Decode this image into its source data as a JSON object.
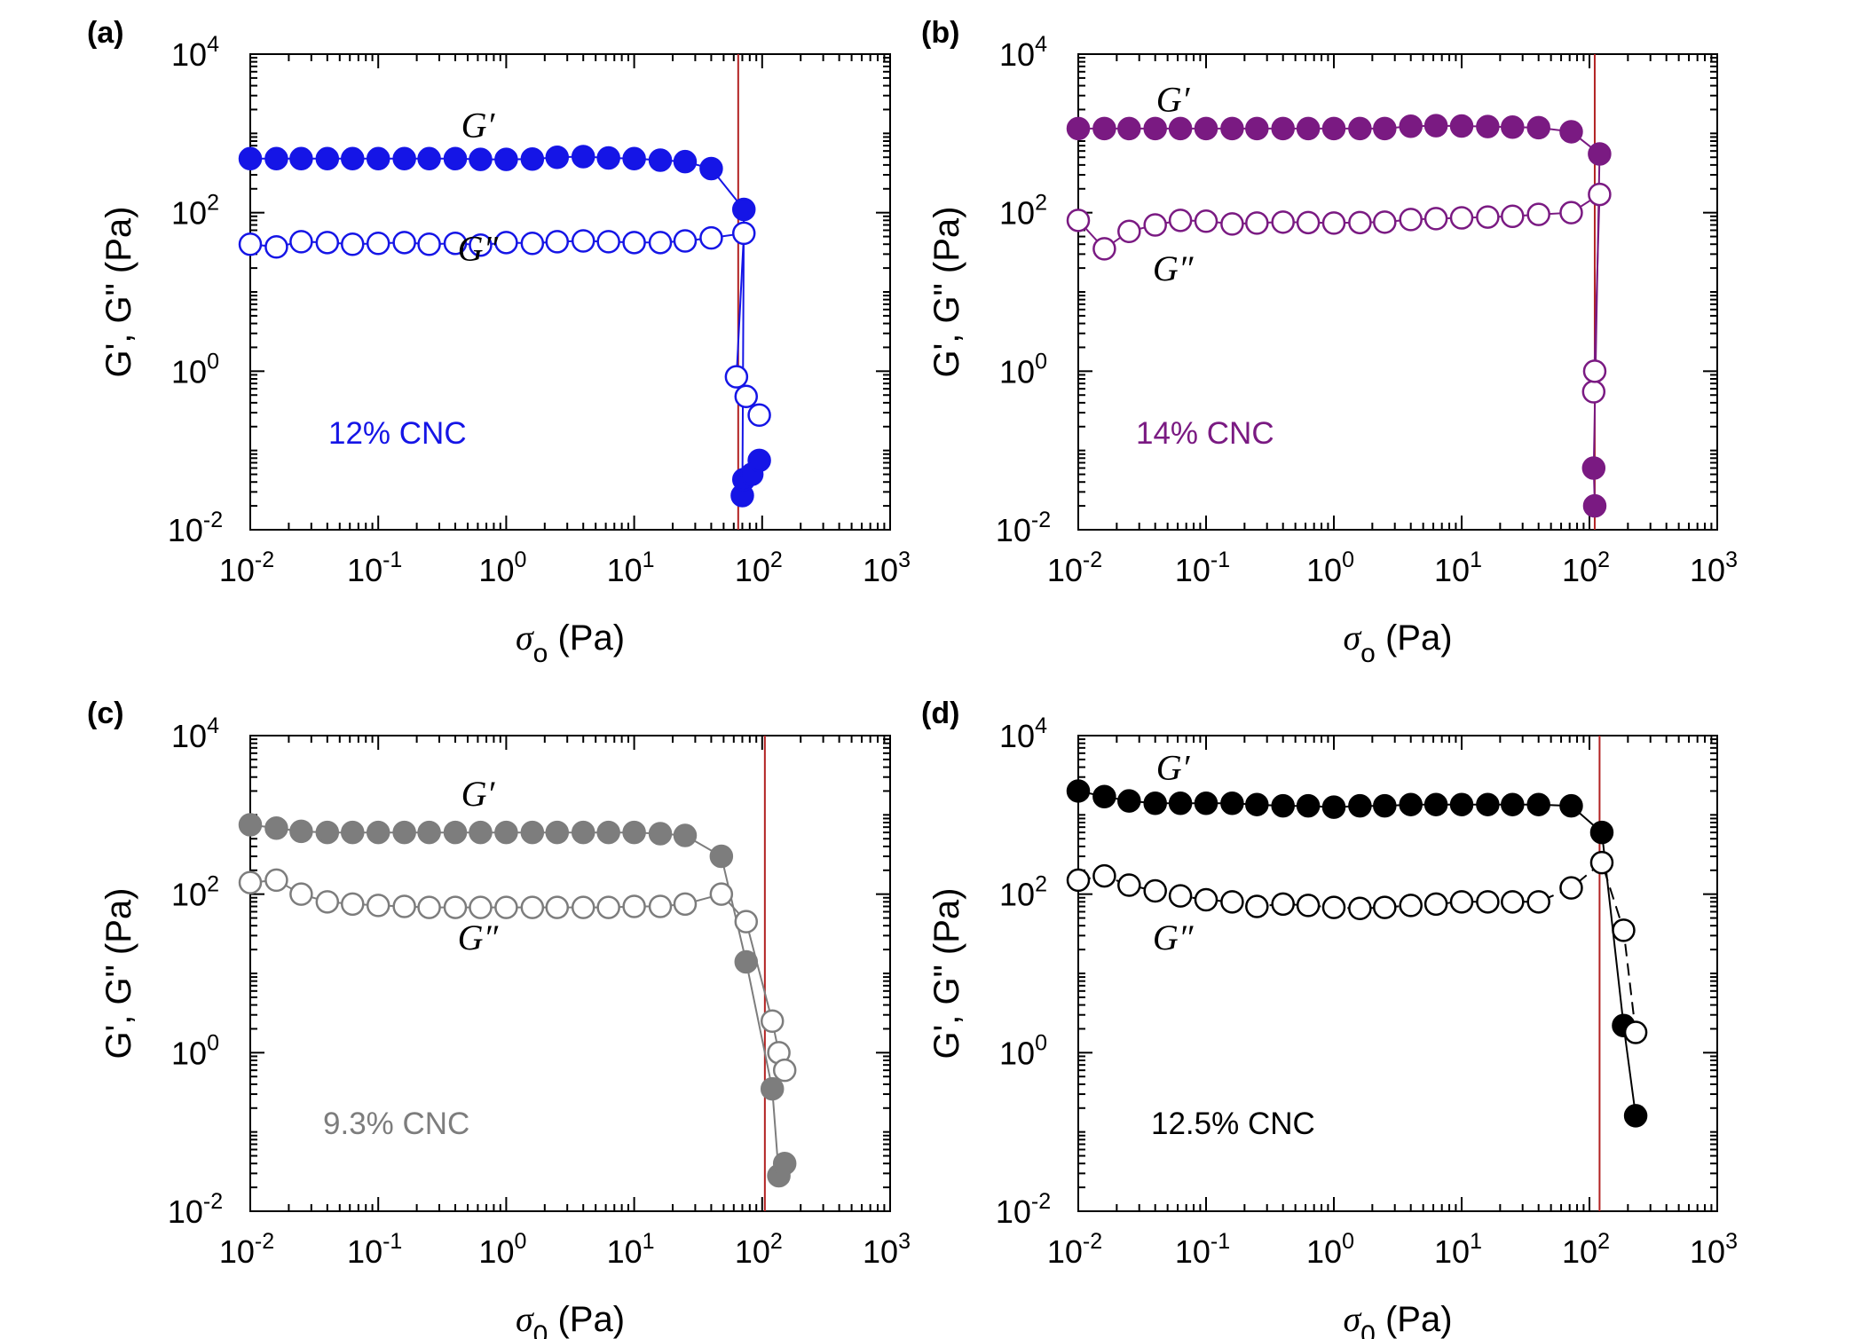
{
  "chart_data": [
    {
      "type": "scatter",
      "panel_label": "(a)",
      "xlabel": "σ",
      "xlabel_sub": "o",
      "xlabel_unit": " (Pa)",
      "ylabel": "G', G\" (Pa)",
      "x_scale": "log",
      "y_scale": "log",
      "xlim": [
        0.01,
        1000
      ],
      "ylim": [
        0.01,
        10000
      ],
      "x_tick_exponents": [
        "-2",
        "-1",
        "0",
        "1",
        "2",
        "3"
      ],
      "y_tick_exponents": [
        "-2",
        "0",
        "2",
        "4"
      ],
      "tick_base": "10",
      "annotation": "12% CNC",
      "color": "#1515e6",
      "vline_x": 65,
      "vline_color": "#b22222",
      "series": [
        {
          "name": "G′",
          "filled": true,
          "dashed": false,
          "label_x": 0.6,
          "label_y": 900,
          "x": [
            0.01,
            0.016,
            0.025,
            0.04,
            0.063,
            0.1,
            0.16,
            0.25,
            0.4,
            0.63,
            1.0,
            1.6,
            2.5,
            4.0,
            6.3,
            10,
            16,
            25,
            40,
            72,
            70,
            72,
            83,
            95
          ],
          "y": [
            480,
            480,
            480,
            480,
            480,
            480,
            480,
            480,
            480,
            470,
            470,
            475,
            500,
            510,
            490,
            480,
            460,
            440,
            360,
            110,
            0.027,
            0.043,
            0.05,
            0.075
          ]
        },
        {
          "name": "G″",
          "filled": false,
          "dashed": false,
          "label_x": 0.6,
          "label_y": 25,
          "x": [
            0.01,
            0.016,
            0.025,
            0.04,
            0.063,
            0.1,
            0.16,
            0.25,
            0.4,
            0.63,
            1.0,
            1.6,
            2.5,
            4.0,
            6.3,
            10,
            16,
            25,
            40,
            72,
            63,
            75,
            95
          ],
          "y": [
            40,
            37,
            43,
            42,
            40,
            41,
            42,
            40,
            41,
            39,
            42,
            41,
            43,
            44,
            43,
            42,
            42,
            44,
            48,
            55,
            0.85,
            0.48,
            0.28
          ]
        }
      ]
    },
    {
      "type": "scatter",
      "panel_label": "(b)",
      "xlabel": "σ",
      "xlabel_sub": "o",
      "xlabel_unit": " (Pa)",
      "ylabel": "G', G\" (Pa)",
      "x_scale": "log",
      "y_scale": "log",
      "xlim": [
        0.01,
        1000
      ],
      "ylim": [
        0.01,
        10000
      ],
      "x_tick_exponents": [
        "-2",
        "-1",
        "0",
        "1",
        "2",
        "3"
      ],
      "y_tick_exponents": [
        "-2",
        "0",
        "2",
        "4"
      ],
      "tick_base": "10",
      "annotation": "14% CNC",
      "color": "#7a1a82",
      "vline_x": 110,
      "vline_color": "#b22222",
      "series": [
        {
          "name": "G′",
          "filled": true,
          "dashed": false,
          "label_x": 0.055,
          "label_y": 1900,
          "x": [
            0.01,
            0.016,
            0.025,
            0.04,
            0.063,
            0.1,
            0.16,
            0.25,
            0.4,
            0.63,
            1.0,
            1.6,
            2.5,
            4.0,
            6.3,
            10,
            16,
            25,
            40,
            72,
            120,
            108,
            110
          ],
          "y": [
            1150,
            1150,
            1150,
            1150,
            1150,
            1150,
            1150,
            1150,
            1150,
            1150,
            1150,
            1150,
            1150,
            1230,
            1250,
            1240,
            1220,
            1200,
            1180,
            1050,
            550,
            0.06,
            0.02
          ]
        },
        {
          "name": "G″",
          "filled": false,
          "dashed": false,
          "label_x": 0.055,
          "label_y": 14,
          "x": [
            0.01,
            0.016,
            0.025,
            0.04,
            0.063,
            0.1,
            0.16,
            0.25,
            0.4,
            0.63,
            1.0,
            1.6,
            2.5,
            4.0,
            6.3,
            10,
            16,
            25,
            40,
            72,
            120,
            108,
            110
          ],
          "y": [
            80,
            35,
            58,
            70,
            80,
            78,
            72,
            74,
            76,
            75,
            74,
            75,
            76,
            82,
            84,
            86,
            88,
            90,
            95,
            100,
            170,
            0.55,
            1.0
          ]
        }
      ]
    },
    {
      "type": "scatter",
      "panel_label": "(c)",
      "xlabel": "σ",
      "xlabel_sub": "0",
      "xlabel_unit": " (Pa)",
      "ylabel": "G', G\" (Pa)",
      "x_scale": "log",
      "y_scale": "log",
      "xlim": [
        0.01,
        1000
      ],
      "ylim": [
        0.01,
        10000
      ],
      "x_tick_exponents": [
        "-2",
        "-1",
        "0",
        "1",
        "2",
        "3"
      ],
      "y_tick_exponents": [
        "-2",
        "0",
        "2",
        "4"
      ],
      "tick_base": "10",
      "annotation": "9.3% CNC",
      "color": "#7d7d7d",
      "vline_x": 105,
      "vline_color": "#b22222",
      "series": [
        {
          "name": "G′",
          "filled": true,
          "dashed": false,
          "label_x": 0.6,
          "label_y": 1300,
          "x": [
            0.01,
            0.016,
            0.025,
            0.04,
            0.063,
            0.1,
            0.16,
            0.25,
            0.4,
            0.63,
            1.0,
            1.6,
            2.5,
            4.0,
            6.3,
            10,
            16,
            25,
            48,
            75,
            120,
            135,
            150
          ],
          "y": [
            750,
            680,
            620,
            600,
            600,
            600,
            600,
            600,
            600,
            600,
            600,
            600,
            600,
            600,
            600,
            600,
            580,
            550,
            300,
            14,
            0.35,
            0.028,
            0.04
          ]
        },
        {
          "name": "G″",
          "filled": false,
          "dashed": false,
          "label_x": 0.6,
          "label_y": 20,
          "x": [
            0.01,
            0.016,
            0.025,
            0.04,
            0.063,
            0.1,
            0.16,
            0.25,
            0.4,
            0.63,
            1.0,
            1.6,
            2.5,
            4.0,
            6.3,
            10,
            16,
            25,
            48,
            75,
            120,
            135,
            150
          ],
          "y": [
            140,
            150,
            100,
            80,
            75,
            72,
            70,
            68,
            68,
            68,
            68,
            68,
            68,
            68,
            68,
            70,
            70,
            75,
            100,
            45,
            2.5,
            1.0,
            0.6
          ]
        }
      ]
    },
    {
      "type": "scatter",
      "panel_label": "(d)",
      "xlabel": "σ",
      "xlabel_sub": "0",
      "xlabel_unit": " (Pa)",
      "ylabel": "G', G\" (Pa)",
      "x_scale": "log",
      "y_scale": "log",
      "xlim": [
        0.01,
        1000
      ],
      "ylim": [
        0.01,
        10000
      ],
      "x_tick_exponents": [
        "-2",
        "-1",
        "0",
        "1",
        "2",
        "3"
      ],
      "y_tick_exponents": [
        "-2",
        "0",
        "2",
        "4"
      ],
      "tick_base": "10",
      "annotation": "12.5% CNC",
      "color": "#000000",
      "vline_x": 120,
      "vline_color": "#b22222",
      "series": [
        {
          "name": "G′",
          "filled": true,
          "dashed": false,
          "label_x": 0.055,
          "label_y": 2800,
          "x": [
            0.01,
            0.016,
            0.025,
            0.04,
            0.063,
            0.1,
            0.16,
            0.25,
            0.4,
            0.63,
            1.0,
            1.6,
            2.5,
            4.0,
            6.3,
            10,
            16,
            25,
            40,
            72,
            125,
            185,
            230
          ],
          "y": [
            2000,
            1700,
            1500,
            1400,
            1400,
            1400,
            1400,
            1350,
            1300,
            1300,
            1250,
            1300,
            1300,
            1350,
            1350,
            1350,
            1350,
            1350,
            1350,
            1300,
            600,
            2.2,
            0.16
          ]
        },
        {
          "name": "G″",
          "filled": false,
          "dashed": true,
          "label_x": 0.055,
          "label_y": 20,
          "x": [
            0.01,
            0.016,
            0.025,
            0.04,
            0.063,
            0.1,
            0.16,
            0.25,
            0.4,
            0.63,
            1.0,
            1.6,
            2.5,
            4.0,
            6.3,
            10,
            16,
            25,
            40,
            72,
            125,
            185,
            230
          ],
          "y": [
            150,
            170,
            130,
            110,
            95,
            85,
            80,
            70,
            75,
            72,
            68,
            66,
            68,
            72,
            75,
            80,
            80,
            80,
            80,
            120,
            250,
            35,
            1.8
          ]
        }
      ]
    }
  ]
}
